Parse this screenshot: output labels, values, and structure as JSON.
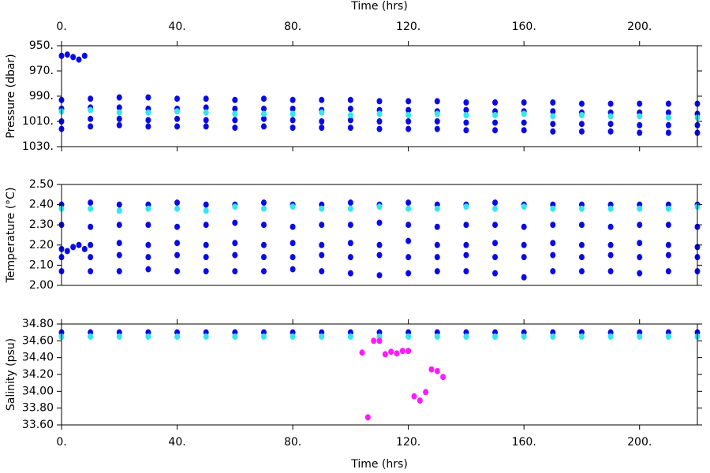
{
  "chart_data": [
    {
      "type": "scatter",
      "ylabel": "Pressure (dbar)",
      "xlabel": "Time (hrs)",
      "xaxis_side": "top",
      "xlim": [
        0,
        220
      ],
      "xticks": [
        {
          "value": 0,
          "label": "0."
        },
        {
          "value": 40,
          "label": "40."
        },
        {
          "value": 80,
          "label": "80."
        },
        {
          "value": 120,
          "label": "120."
        },
        {
          "value": 160,
          "label": "160."
        },
        {
          "value": 200,
          "label": "200."
        }
      ],
      "ylim": [
        1030,
        950
      ],
      "yticks": [
        {
          "value": 950,
          "label": "950."
        },
        {
          "value": 970,
          "label": "970."
        },
        {
          "value": 990,
          "label": "990."
        },
        {
          "value": 1010,
          "label": "1010."
        },
        {
          "value": 1030,
          "label": "1030."
        }
      ],
      "series": [
        {
          "color": "#0a0ae6",
          "x": [
            0,
            2,
            4,
            6,
            8
          ],
          "values": [
            958,
            957,
            959,
            961,
            958
          ]
        },
        {
          "color": "#0a0ae6",
          "x": [
            0,
            10,
            20,
            30,
            40,
            50,
            60,
            70,
            80,
            90,
            100,
            110,
            120,
            130,
            140,
            150,
            160,
            170,
            180,
            190,
            200,
            210,
            220
          ],
          "values": [
            993,
            992,
            991,
            991,
            992,
            992,
            993,
            992,
            993,
            993,
            993,
            994,
            994,
            994,
            995,
            995,
            995,
            995,
            996,
            996,
            996,
            996,
            996
          ]
        },
        {
          "color": "#0a0ae6",
          "x": [
            0,
            10,
            20,
            30,
            40,
            50,
            60,
            70,
            80,
            90,
            100,
            110,
            120,
            130,
            140,
            150,
            160,
            170,
            180,
            190,
            200,
            210,
            220
          ],
          "values": [
            1000,
            999,
            999,
            1000,
            1000,
            999,
            1000,
            1000,
            1000,
            1001,
            1000,
            1001,
            1001,
            1002,
            1001,
            1002,
            1002,
            1002,
            1003,
            1003,
            1003,
            1003,
            1004
          ]
        },
        {
          "color": "#0a0ae6",
          "x": [
            0,
            10,
            20,
            30,
            40,
            50,
            60,
            70,
            80,
            90,
            100,
            110,
            120,
            130,
            140,
            150,
            160,
            170,
            180,
            190,
            200,
            210,
            220
          ],
          "values": [
            1010,
            1008,
            1008,
            1009,
            1008,
            1009,
            1009,
            1008,
            1009,
            1010,
            1009,
            1010,
            1010,
            1010,
            1011,
            1011,
            1011,
            1012,
            1012,
            1012,
            1013,
            1013,
            1013
          ]
        },
        {
          "color": "#0a0ae6",
          "x": [
            0,
            10,
            20,
            30,
            40,
            50,
            60,
            70,
            80,
            90,
            100,
            110,
            120,
            130,
            140,
            150,
            160,
            170,
            180,
            190,
            200,
            210,
            220
          ],
          "values": [
            1016,
            1014,
            1013,
            1014,
            1014,
            1014,
            1015,
            1014,
            1015,
            1015,
            1015,
            1016,
            1016,
            1016,
            1017,
            1017,
            1017,
            1018,
            1018,
            1018,
            1019,
            1019,
            1019
          ]
        },
        {
          "color": "#33e6f0",
          "x": [
            0,
            10,
            20,
            30,
            40,
            50,
            60,
            70,
            80,
            90,
            100,
            110,
            120,
            130,
            140,
            150,
            160,
            170,
            180,
            190,
            200,
            210,
            220
          ],
          "values": [
            1002,
            1001,
            1003,
            1003,
            1002,
            1003,
            1004,
            1004,
            1004,
            1003,
            1005,
            1004,
            1005,
            1004,
            1005,
            1005,
            1004,
            1006,
            1005,
            1006,
            1006,
            1007,
            1007
          ]
        }
      ]
    },
    {
      "type": "scatter",
      "ylabel": "Temperature (°C)",
      "xlim": [
        0,
        220
      ],
      "ylim": [
        2.0,
        2.5
      ],
      "yticks": [
        {
          "value": 2.0,
          "label": "2.00"
        },
        {
          "value": 2.1,
          "label": "2.10"
        },
        {
          "value": 2.2,
          "label": "2.20"
        },
        {
          "value": 2.3,
          "label": "2.30"
        },
        {
          "value": 2.4,
          "label": "2.40"
        },
        {
          "value": 2.5,
          "label": "2.50"
        }
      ],
      "series": [
        {
          "color": "#0a0ae6",
          "x": [
            0,
            10,
            20,
            30,
            40,
            50,
            60,
            70,
            80,
            90,
            100,
            110,
            120,
            130,
            140,
            150,
            160,
            170,
            180,
            190,
            200,
            210,
            220
          ],
          "values": [
            2.4,
            2.41,
            2.4,
            2.4,
            2.41,
            2.4,
            2.4,
            2.41,
            2.4,
            2.4,
            2.41,
            2.4,
            2.41,
            2.4,
            2.4,
            2.41,
            2.4,
            2.4,
            2.4,
            2.4,
            2.4,
            2.4,
            2.4
          ]
        },
        {
          "color": "#0a0ae6",
          "x": [
            0,
            10,
            20,
            30,
            40,
            50,
            60,
            70,
            80,
            90,
            100,
            110,
            120,
            130,
            140,
            150,
            160,
            170,
            180,
            190,
            200,
            210,
            220
          ],
          "values": [
            2.3,
            2.29,
            2.3,
            2.3,
            2.29,
            2.3,
            2.31,
            2.3,
            2.29,
            2.3,
            2.3,
            2.31,
            2.3,
            2.29,
            2.3,
            2.3,
            2.29,
            2.3,
            2.3,
            2.29,
            2.3,
            2.3,
            2.29
          ]
        },
        {
          "color": "#0a0ae6",
          "x": [
            0,
            2,
            4,
            6,
            8,
            10,
            20,
            30,
            40,
            50,
            60,
            70,
            80,
            90,
            100,
            110,
            120,
            130,
            140,
            150,
            160,
            170,
            180,
            190,
            200,
            210,
            220
          ],
          "values": [
            2.18,
            2.17,
            2.19,
            2.2,
            2.18,
            2.2,
            2.21,
            2.2,
            2.21,
            2.2,
            2.21,
            2.2,
            2.21,
            2.2,
            2.21,
            2.2,
            2.22,
            2.2,
            2.2,
            2.21,
            2.2,
            2.21,
            2.2,
            2.2,
            2.21,
            2.2,
            2.19
          ]
        },
        {
          "color": "#0a0ae6",
          "x": [
            0,
            10,
            20,
            30,
            40,
            50,
            60,
            70,
            80,
            90,
            100,
            110,
            120,
            130,
            140,
            150,
            160,
            170,
            180,
            190,
            200,
            210,
            220
          ],
          "values": [
            2.14,
            2.14,
            2.15,
            2.14,
            2.15,
            2.14,
            2.15,
            2.14,
            2.14,
            2.15,
            2.14,
            2.15,
            2.14,
            2.14,
            2.15,
            2.14,
            2.14,
            2.15,
            2.14,
            2.15,
            2.14,
            2.15,
            2.14
          ]
        },
        {
          "color": "#0a0ae6",
          "x": [
            0,
            10,
            20,
            30,
            40,
            50,
            60,
            70,
            80,
            90,
            100,
            110,
            120,
            130,
            140,
            150,
            160,
            170,
            180,
            190,
            200,
            210,
            220
          ],
          "values": [
            2.07,
            2.07,
            2.07,
            2.08,
            2.07,
            2.07,
            2.07,
            2.07,
            2.08,
            2.07,
            2.06,
            2.05,
            2.06,
            2.07,
            2.07,
            2.06,
            2.04,
            2.07,
            2.07,
            2.07,
            2.06,
            2.07,
            2.07
          ]
        },
        {
          "color": "#33e6f0",
          "x": [
            0,
            10,
            20,
            30,
            40,
            50,
            60,
            70,
            80,
            90,
            100,
            110,
            120,
            130,
            140,
            150,
            160,
            170,
            180,
            190,
            200,
            210,
            220
          ],
          "values": [
            2.38,
            2.38,
            2.37,
            2.38,
            2.38,
            2.37,
            2.39,
            2.38,
            2.39,
            2.38,
            2.38,
            2.39,
            2.38,
            2.38,
            2.39,
            2.38,
            2.39,
            2.38,
            2.38,
            2.38,
            2.38,
            2.38,
            2.39
          ]
        }
      ]
    },
    {
      "type": "scatter",
      "ylabel": "Salinity (psu)",
      "xlabel": "Time (hrs)",
      "xaxis_side": "bottom",
      "xlim": [
        0,
        220
      ],
      "xticks": [
        {
          "value": 0,
          "label": "0."
        },
        {
          "value": 40,
          "label": "40."
        },
        {
          "value": 80,
          "label": "80."
        },
        {
          "value": 120,
          "label": "120."
        },
        {
          "value": 160,
          "label": "160."
        },
        {
          "value": 200,
          "label": "200."
        }
      ],
      "ylim": [
        33.6,
        34.8
      ],
      "yticks": [
        {
          "value": 33.6,
          "label": "33.60"
        },
        {
          "value": 33.8,
          "label": "33.80"
        },
        {
          "value": 34.0,
          "label": "34.00"
        },
        {
          "value": 34.2,
          "label": "34.20"
        },
        {
          "value": 34.4,
          "label": "34.40"
        },
        {
          "value": 34.6,
          "label": "34.60"
        },
        {
          "value": 34.8,
          "label": "34.80"
        }
      ],
      "series": [
        {
          "color": "#0a0ae6",
          "x": [
            0,
            10,
            20,
            30,
            40,
            50,
            60,
            70,
            80,
            90,
            100,
            110,
            120,
            130,
            140,
            150,
            160,
            170,
            180,
            190,
            200,
            210,
            220
          ],
          "values": [
            34.7,
            34.7,
            34.7,
            34.7,
            34.7,
            34.7,
            34.7,
            34.7,
            34.7,
            34.7,
            34.7,
            34.7,
            34.7,
            34.7,
            34.7,
            34.7,
            34.7,
            34.7,
            34.7,
            34.7,
            34.7,
            34.7,
            34.7
          ]
        },
        {
          "color": "#33e6f0",
          "x": [
            0,
            10,
            20,
            30,
            40,
            50,
            60,
            70,
            80,
            90,
            100,
            110,
            120,
            130,
            140,
            150,
            160,
            170,
            180,
            190,
            200,
            210,
            220
          ],
          "values": [
            34.65,
            34.65,
            34.65,
            34.65,
            34.65,
            34.65,
            34.65,
            34.65,
            34.65,
            34.65,
            34.65,
            34.65,
            34.65,
            34.65,
            34.65,
            34.65,
            34.65,
            34.65,
            34.65,
            34.65,
            34.65,
            34.65,
            34.65
          ]
        },
        {
          "color": "#ff1aff",
          "x": [
            104,
            106,
            108,
            110,
            112,
            114,
            116,
            118,
            120,
            122,
            124,
            126,
            128,
            130,
            132
          ],
          "values": [
            34.46,
            33.69,
            34.6,
            34.6,
            34.44,
            34.47,
            34.45,
            34.48,
            34.48,
            33.94,
            33.89,
            33.99,
            34.26,
            34.24,
            34.17
          ]
        }
      ]
    }
  ]
}
